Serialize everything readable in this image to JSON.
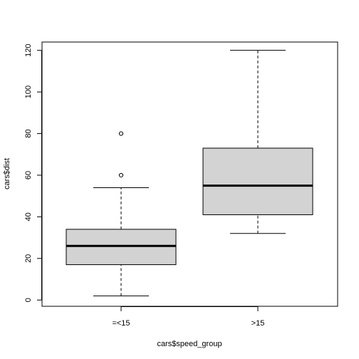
{
  "chart_data": {
    "type": "boxplot",
    "xlabel": "cars$speed_group",
    "ylabel": "cars$dist",
    "ylim": [
      -3,
      124
    ],
    "y_ticks": [
      0,
      20,
      40,
      60,
      80,
      100,
      120
    ],
    "categories": [
      "=<15",
      ">15"
    ],
    "boxes": [
      {
        "category": "=<15",
        "whisker_low": 2,
        "q1": 17,
        "median": 26,
        "q3": 34,
        "whisker_high": 54,
        "outliers": [
          60,
          80
        ]
      },
      {
        "category": ">15",
        "whisker_low": 32,
        "q1": 41,
        "median": 55,
        "q3": 73,
        "whisker_high": 120,
        "outliers": []
      }
    ],
    "box_fill": "#d3d3d3",
    "grid": false
  }
}
